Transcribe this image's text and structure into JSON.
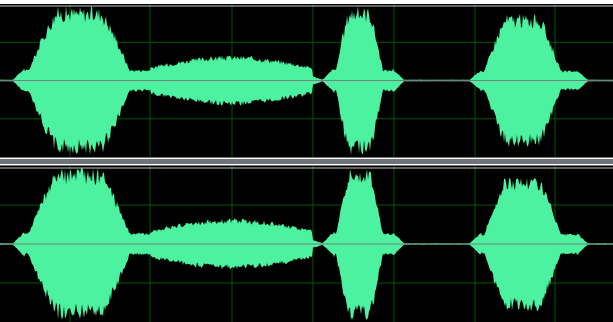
{
  "editor": {
    "view": "waveform",
    "channels": [
      "left",
      "right"
    ]
  },
  "colors": {
    "background": "#000000",
    "waveform": "#4cf2a0",
    "center_line": "#7a7f82",
    "grid": "#005500",
    "clip_line": "#c8c8c8",
    "splitter": "#6f7478"
  },
  "waveform": {
    "segments": [
      {
        "start": 0.04,
        "end": 0.245,
        "amplitude": 1.0
      },
      {
        "start": 0.245,
        "end": 0.51,
        "amplitude": 0.34
      },
      {
        "start": 0.545,
        "end": 0.64,
        "amplitude": 1.0
      },
      {
        "start": 0.785,
        "end": 0.94,
        "amplitude": 0.9
      }
    ]
  }
}
